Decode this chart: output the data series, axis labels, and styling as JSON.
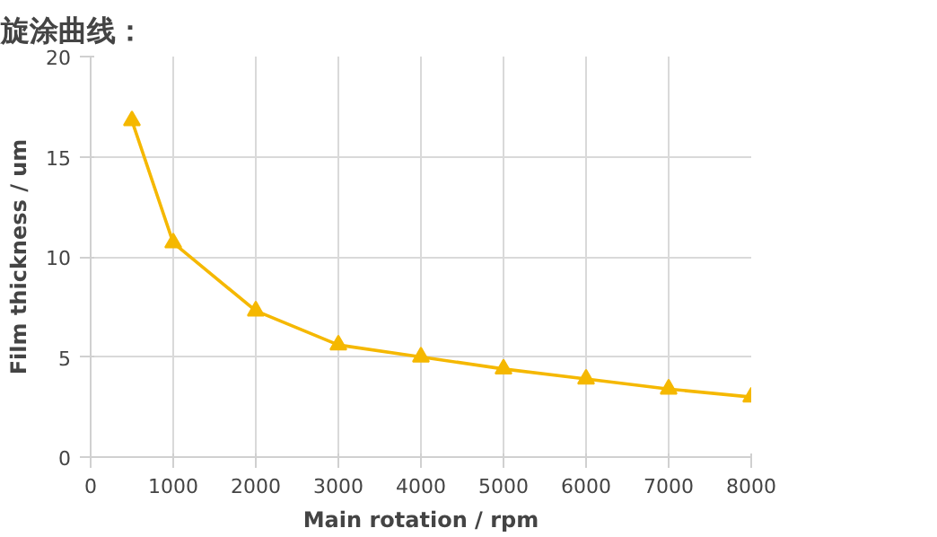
{
  "chart_data": {
    "type": "line",
    "title": "旋涂曲线：",
    "xlabel": "Main rotation / rpm",
    "ylabel": "Film thickness / um",
    "x": [
      500,
      1000,
      2000,
      3000,
      4000,
      5000,
      6000,
      7000,
      8000
    ],
    "series": [
      {
        "color": "#f5b800",
        "values": [
          16.8,
          10.7,
          7.3,
          5.6,
          5.0,
          4.4,
          3.9,
          3.4,
          3.0
        ]
      }
    ],
    "xlim": [
      0,
      8000
    ],
    "xticks": [
      0,
      1000,
      2000,
      3000,
      4000,
      5000,
      6000,
      7000,
      8000
    ],
    "ylim": [
      0,
      20
    ],
    "yticks": [
      0,
      5,
      10,
      15,
      20
    ],
    "grid": true,
    "marker": "triangle",
    "line_style": "solid"
  }
}
